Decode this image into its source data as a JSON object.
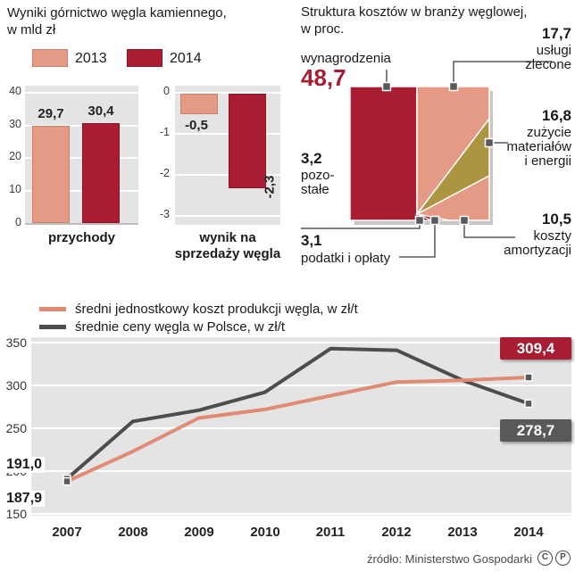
{
  "bar_section": {
    "title": "Wyniki górnictwo węgla kamiennego,",
    "title2": "w mld zł",
    "legend": {
      "y2013": "2013",
      "y2014": "2014"
    },
    "revenue": {
      "axis_label": "przychody",
      "ticks": [
        "40",
        "30",
        "20",
        "10",
        "0"
      ],
      "bar_2013_label": "29,7",
      "bar_2014_label": "30,4"
    },
    "result": {
      "axis_label1": "wynik na",
      "axis_label2": "sprzedaży węgla",
      "ticks": [
        "0",
        "-1",
        "-2",
        "-3"
      ],
      "bar_2013_label": "-0,5",
      "bar_2014_label": "-2,3"
    }
  },
  "pie_section": {
    "title": "Struktura kosztów w branży węglowej,",
    "title2": "w proc.",
    "labels": {
      "wyn_name": "wynagrodzenia",
      "wyn_value": "48,7",
      "uslugi_value": "17,7",
      "uslugi_1": "usługi",
      "uslugi_2": "zlecone",
      "zuzycie_value": "16,8",
      "zuzycie_1": "zużycie",
      "zuzycie_2": "materiałów",
      "zuzycie_3": "i energii",
      "amort_value": "10,5",
      "amort_1": "koszty",
      "amort_2": "amortyzacji",
      "pozostale_value": "3,2",
      "pozostale_1": "pozo-",
      "pozostale_2": "stałe",
      "podatki_value": "3,1",
      "podatki_label": "podatki i opłaty"
    }
  },
  "line_section": {
    "legend1": "średni jednostkowy koszt produkcji węgla, w zł/t",
    "legend2": "średnie ceny węgla w Polsce, w zł/t",
    "yticks": [
      "350",
      "300",
      "250",
      "200",
      "150"
    ],
    "years": [
      "2007",
      "2008",
      "2009",
      "2010",
      "2011",
      "2012",
      "2013",
      "2014"
    ],
    "price_start": "191,0",
    "cost_start": "187,9",
    "cost_end_badge": "309,4",
    "price_end_badge": "278,7"
  },
  "footer": {
    "source": "źródło: Ministerstwo Gospodarki",
    "icon_c": "C",
    "icon_p": "P"
  },
  "colors": {
    "salmon": "#e49a84",
    "dark_red": "#a81d31",
    "olive": "#ac9440",
    "dark_gray": "#58595b"
  },
  "chart_data": [
    {
      "type": "bar",
      "title": "Wyniki górnictwo węgla kamiennego, w mld zł — przychody",
      "categories": [
        "2013",
        "2014"
      ],
      "values": [
        29.7,
        30.4
      ],
      "ylabel": "mld zł",
      "ylim": [
        0,
        40
      ]
    },
    {
      "type": "bar",
      "title": "wynik na sprzedaży węgla, w mld zł",
      "categories": [
        "2013",
        "2014"
      ],
      "values": [
        -0.5,
        -2.3
      ],
      "ylabel": "mld zł",
      "ylim": [
        -3,
        0
      ]
    },
    {
      "type": "pie",
      "title": "Struktura kosztów w branży węglowej, w proc.",
      "categories": [
        "wynagrodzenia",
        "usługi zlecone",
        "zużycie materiałów i energii",
        "koszty amortyzacji",
        "pozostałe",
        "podatki i opłaty"
      ],
      "values": [
        48.7,
        17.7,
        16.8,
        10.5,
        3.2,
        3.1
      ]
    },
    {
      "type": "line",
      "x": [
        2007,
        2008,
        2009,
        2010,
        2011,
        2012,
        2013,
        2014
      ],
      "series": [
        {
          "name": "średni jednostkowy koszt produkcji węgla, w zł/t",
          "values": [
            187.9,
            223,
            262,
            272,
            288,
            304,
            306,
            309.4
          ]
        },
        {
          "name": "średnie ceny węgla w Polsce, w zł/t",
          "values": [
            191.0,
            258,
            271,
            292,
            343,
            341,
            306,
            278.7
          ]
        }
      ],
      "ylim": [
        150,
        350
      ],
      "legend_position": "top-left",
      "grid": true
    }
  ]
}
